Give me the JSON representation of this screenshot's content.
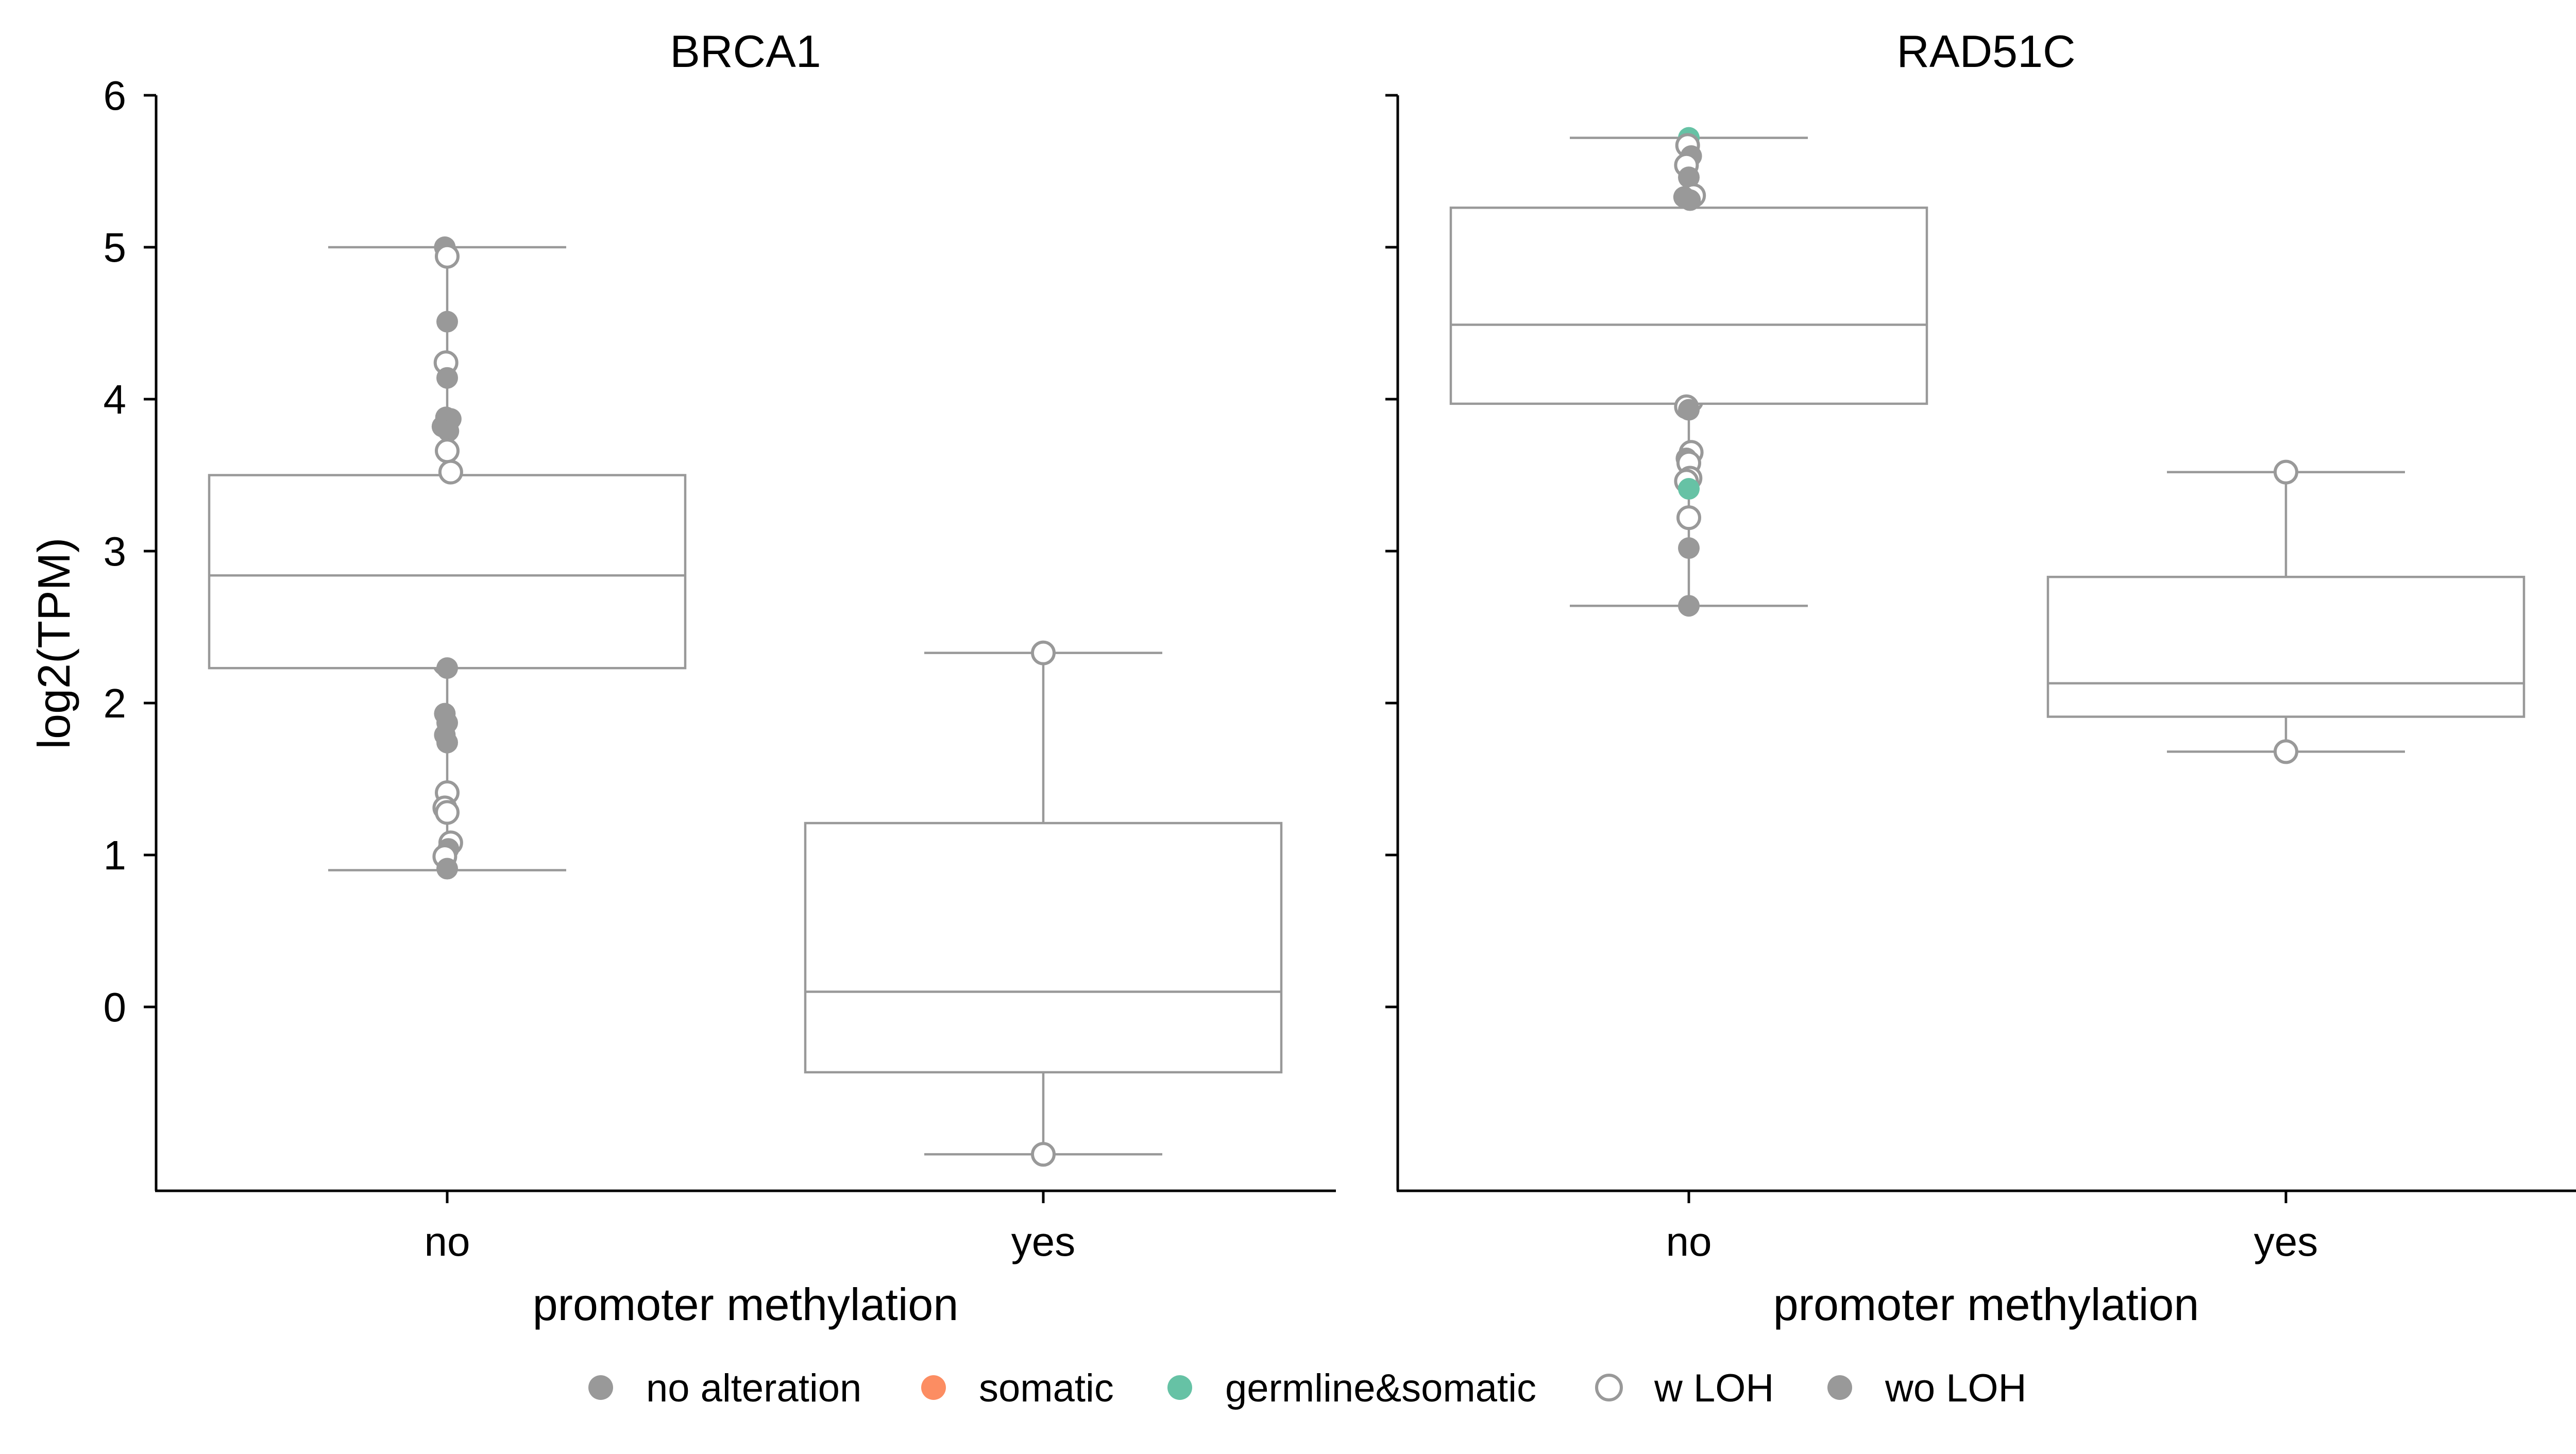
{
  "chart_data": [
    {
      "type": "box",
      "title": "BRCA1",
      "xlabel": "promoter methylation",
      "ylabel": "log2(TPM)",
      "ylim": [
        -1.2,
        6.0
      ],
      "yticks": [
        0,
        1,
        2,
        3,
        4,
        5,
        6
      ],
      "categories": [
        "no",
        "yes"
      ],
      "boxes": [
        {
          "category": "no",
          "whisker_low": 0.9,
          "q1": 2.23,
          "median": 2.84,
          "q3": 3.5,
          "whisker_high": 5.0
        },
        {
          "category": "yes",
          "whisker_low": -0.97,
          "q1": -0.43,
          "median": 0.1,
          "q3": 1.21,
          "whisker_high": 2.33
        }
      ],
      "points": [
        {
          "category": "no",
          "jitter": -0.02,
          "y": 5.0,
          "alteration": "no alteration",
          "loh": "wo LOH"
        },
        {
          "category": "no",
          "jitter": 0.0,
          "y": 4.94,
          "alteration": "no alteration",
          "loh": "w LOH"
        },
        {
          "category": "no",
          "jitter": 0.0,
          "y": 4.51,
          "alteration": "no alteration",
          "loh": "wo LOH"
        },
        {
          "category": "no",
          "jitter": -0.01,
          "y": 4.24,
          "alteration": "no alteration",
          "loh": "w LOH"
        },
        {
          "category": "no",
          "jitter": 0.0,
          "y": 4.14,
          "alteration": "no alteration",
          "loh": "wo LOH"
        },
        {
          "category": "no",
          "jitter": -0.01,
          "y": 3.88,
          "alteration": "no alteration",
          "loh": "wo LOH"
        },
        {
          "category": "no",
          "jitter": 0.03,
          "y": 3.87,
          "alteration": "no alteration",
          "loh": "wo LOH"
        },
        {
          "category": "no",
          "jitter": -0.04,
          "y": 3.82,
          "alteration": "no alteration",
          "loh": "wo LOH"
        },
        {
          "category": "no",
          "jitter": 0.01,
          "y": 3.79,
          "alteration": "no alteration",
          "loh": "wo LOH"
        },
        {
          "category": "no",
          "jitter": 0.0,
          "y": 3.66,
          "alteration": "no alteration",
          "loh": "w LOH"
        },
        {
          "category": "no",
          "jitter": 0.03,
          "y": 3.52,
          "alteration": "no alteration",
          "loh": "w LOH"
        },
        {
          "category": "no",
          "jitter": -0.02,
          "y": 2.26,
          "alteration": "no alteration",
          "loh": "w LOH"
        },
        {
          "category": "no",
          "jitter": 0.0,
          "y": 2.23,
          "alteration": "no alteration",
          "loh": "wo LOH"
        },
        {
          "category": "no",
          "jitter": -0.02,
          "y": 1.93,
          "alteration": "no alteration",
          "loh": "wo LOH"
        },
        {
          "category": "no",
          "jitter": 0.0,
          "y": 1.87,
          "alteration": "no alteration",
          "loh": "wo LOH"
        },
        {
          "category": "no",
          "jitter": -0.02,
          "y": 1.79,
          "alteration": "no alteration",
          "loh": "wo LOH"
        },
        {
          "category": "no",
          "jitter": 0.0,
          "y": 1.74,
          "alteration": "no alteration",
          "loh": "wo LOH"
        },
        {
          "category": "no",
          "jitter": 0.0,
          "y": 1.41,
          "alteration": "no alteration",
          "loh": "w LOH"
        },
        {
          "category": "no",
          "jitter": -0.02,
          "y": 1.31,
          "alteration": "no alteration",
          "loh": "w LOH"
        },
        {
          "category": "no",
          "jitter": 0.0,
          "y": 1.28,
          "alteration": "no alteration",
          "loh": "w LOH"
        },
        {
          "category": "no",
          "jitter": 0.03,
          "y": 1.08,
          "alteration": "no alteration",
          "loh": "w LOH"
        },
        {
          "category": "no",
          "jitter": 0.01,
          "y": 1.04,
          "alteration": "no alteration",
          "loh": "wo LOH"
        },
        {
          "category": "no",
          "jitter": -0.02,
          "y": 0.99,
          "alteration": "no alteration",
          "loh": "w LOH"
        },
        {
          "category": "no",
          "jitter": 0.0,
          "y": 0.91,
          "alteration": "no alteration",
          "loh": "wo LOH"
        },
        {
          "category": "yes",
          "jitter": 0.0,
          "y": 2.33,
          "alteration": "no alteration",
          "loh": "w LOH"
        },
        {
          "category": "yes",
          "jitter": 0.0,
          "y": -0.97,
          "alteration": "no alteration",
          "loh": "w LOH"
        }
      ]
    },
    {
      "type": "box",
      "title": "RAD51C",
      "xlabel": "promoter methylation",
      "ylabel": "",
      "ylim": [
        -1.2,
        6.0
      ],
      "yticks": [
        0,
        1,
        2,
        3,
        4,
        5,
        6
      ],
      "categories": [
        "no",
        "yes"
      ],
      "boxes": [
        {
          "category": "no",
          "whisker_low": 2.64,
          "q1": 3.97,
          "median": 4.49,
          "q3": 5.26,
          "whisker_high": 5.72
        },
        {
          "category": "yes",
          "whisker_low": 1.68,
          "q1": 1.91,
          "median": 2.13,
          "q3": 2.83,
          "whisker_high": 3.52
        }
      ],
      "points": [
        {
          "category": "no",
          "jitter": 0.0,
          "y": 5.72,
          "alteration": "germline&somatic",
          "loh": "wo LOH"
        },
        {
          "category": "no",
          "jitter": -0.01,
          "y": 5.67,
          "alteration": "no alteration",
          "loh": "w LOH"
        },
        {
          "category": "no",
          "jitter": 0.02,
          "y": 5.6,
          "alteration": "no alteration",
          "loh": "wo LOH"
        },
        {
          "category": "no",
          "jitter": -0.02,
          "y": 5.54,
          "alteration": "no alteration",
          "loh": "w LOH"
        },
        {
          "category": "no",
          "jitter": 0.0,
          "y": 5.46,
          "alteration": "no alteration",
          "loh": "wo LOH"
        },
        {
          "category": "no",
          "jitter": 0.04,
          "y": 5.34,
          "alteration": "no alteration",
          "loh": "w LOH"
        },
        {
          "category": "no",
          "jitter": -0.04,
          "y": 5.33,
          "alteration": "no alteration",
          "loh": "wo LOH"
        },
        {
          "category": "no",
          "jitter": 0.01,
          "y": 5.31,
          "alteration": "no alteration",
          "loh": "wo LOH"
        },
        {
          "category": "no",
          "jitter": 0.02,
          "y": 3.99,
          "alteration": "no alteration",
          "loh": "w LOH"
        },
        {
          "category": "no",
          "jitter": -0.02,
          "y": 3.95,
          "alteration": "no alteration",
          "loh": "w LOH"
        },
        {
          "category": "no",
          "jitter": 0.0,
          "y": 3.93,
          "alteration": "no alteration",
          "loh": "wo LOH"
        },
        {
          "category": "no",
          "jitter": 0.02,
          "y": 3.65,
          "alteration": "no alteration",
          "loh": "w LOH"
        },
        {
          "category": "no",
          "jitter": -0.02,
          "y": 3.61,
          "alteration": "no alteration",
          "loh": "wo LOH"
        },
        {
          "category": "no",
          "jitter": 0.0,
          "y": 3.58,
          "alteration": "no alteration",
          "loh": "w LOH"
        },
        {
          "category": "no",
          "jitter": 0.01,
          "y": 3.48,
          "alteration": "no alteration",
          "loh": "w LOH"
        },
        {
          "category": "no",
          "jitter": -0.02,
          "y": 3.46,
          "alteration": "no alteration",
          "loh": "w LOH"
        },
        {
          "category": "no",
          "jitter": 0.0,
          "y": 3.41,
          "alteration": "germline&somatic",
          "loh": "wo LOH"
        },
        {
          "category": "no",
          "jitter": 0.0,
          "y": 3.22,
          "alteration": "no alteration",
          "loh": "w LOH"
        },
        {
          "category": "no",
          "jitter": 0.0,
          "y": 3.02,
          "alteration": "no alteration",
          "loh": "wo LOH"
        },
        {
          "category": "no",
          "jitter": 0.0,
          "y": 2.64,
          "alteration": "no alteration",
          "loh": "wo LOH"
        },
        {
          "category": "yes",
          "jitter": 0.0,
          "y": 3.52,
          "alteration": "no alteration",
          "loh": "w LOH"
        },
        {
          "category": "yes",
          "jitter": 0.0,
          "y": 1.68,
          "alteration": "no alteration",
          "loh": "w LOH"
        }
      ]
    }
  ],
  "legend": {
    "placement": "bottom-center",
    "items": [
      {
        "label": "no alteration",
        "marker": "filled",
        "color": "#999999"
      },
      {
        "label": "somatic",
        "marker": "filled",
        "color": "#fc8d62"
      },
      {
        "label": "germline&somatic",
        "marker": "filled",
        "color": "#66c2a5"
      },
      {
        "label": "w LOH",
        "marker": "hollow",
        "color": "#999999"
      },
      {
        "label": "wo LOH",
        "marker": "filled",
        "color": "#999999"
      }
    ]
  },
  "colors": {
    "no alteration": "#999999",
    "somatic": "#fc8d62",
    "germline&somatic": "#66c2a5",
    "box": "#999999"
  }
}
